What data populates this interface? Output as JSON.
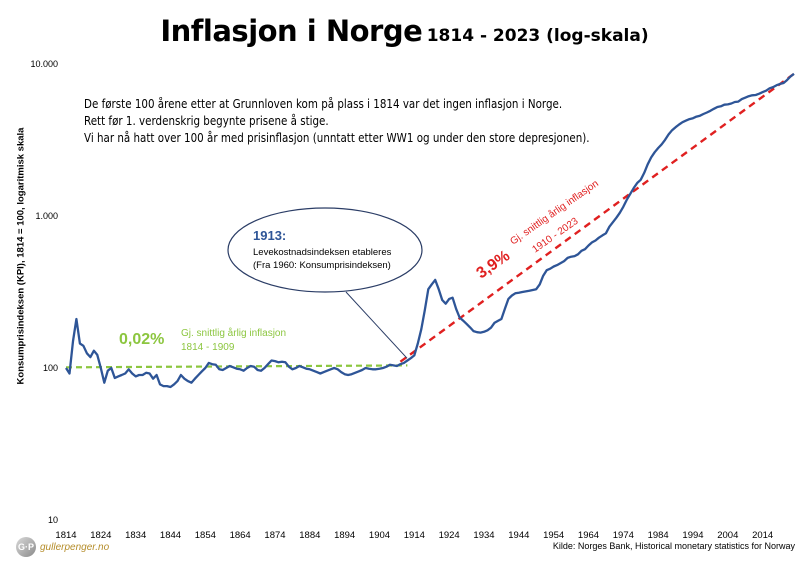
{
  "title": {
    "main": "Inflasjon i Norge",
    "sub": "1814 - 2023 (log-skala)"
  },
  "note_lines": [
    "De første 100 årene etter at Grunnloven kom på plass i 1814 var det ingen inflasjon i Norge.",
    "Rett før 1. verdenskrig begynte prisene å stige.",
    "Vi har nå hatt over 100 år med prisinflasjon (unntatt etter WW1 og under den store depresjonen)."
  ],
  "callout": {
    "year": "1913:",
    "line1": "Levekostnadsindeksen etableres",
    "line2": "(Fra 1960: Konsumprisindeksen)"
  },
  "annotation_early": {
    "rate": "0,02%",
    "line1": "Gj. snittlig årlig inflasjon",
    "line2": "1814 - 1909"
  },
  "annotation_late": {
    "rate": "3,9%",
    "line1": "Gj. snittlig årlig inflasjon",
    "line2": "1910 - 2023"
  },
  "source": "Kilde: Norges Bank, Historical monetary statistics for Norway",
  "logo": {
    "mark": "G·P",
    "site": "gullerpenger.no"
  },
  "colors": {
    "series": "#2e5597",
    "early_trend": "#8cc63f",
    "late_trend": "#e02020",
    "callout_text": "#2e5597"
  },
  "chart_data": {
    "type": "line",
    "title": "Inflasjon i Norge",
    "subtitle": "1814 - 2023 (log-skala)",
    "xlabel": "",
    "ylabel": "Konsumprisindeksen (KPI), 1814 = 100, logaritmisk skala",
    "xlim": [
      1814,
      2023
    ],
    "ylim": [
      10,
      10000
    ],
    "y_scale": "log",
    "yticks": [
      10,
      100,
      1000,
      10000
    ],
    "ytick_labels": [
      "10",
      "100",
      "1.000",
      "10.000"
    ],
    "xticks": [
      1814,
      1824,
      1834,
      1844,
      1854,
      1864,
      1874,
      1884,
      1894,
      1904,
      1914,
      1924,
      1934,
      1944,
      1954,
      1964,
      1974,
      1984,
      1994,
      2004,
      2014
    ],
    "grid": false,
    "series": [
      {
        "name": "",
        "points": [
          [
            1814,
            100
          ],
          [
            1815,
            92
          ],
          [
            1816,
            150
          ],
          [
            1817,
            210
          ],
          [
            1818,
            145
          ],
          [
            1819,
            140
          ],
          [
            1820,
            125
          ],
          [
            1821,
            118
          ],
          [
            1822,
            130
          ],
          [
            1823,
            122
          ],
          [
            1824,
            100
          ],
          [
            1825,
            80
          ],
          [
            1826,
            96
          ],
          [
            1827,
            100
          ],
          [
            1828,
            86
          ],
          [
            1829,
            88
          ],
          [
            1830,
            90
          ],
          [
            1831,
            92
          ],
          [
            1832,
            98
          ],
          [
            1833,
            92
          ],
          [
            1834,
            88
          ],
          [
            1835,
            90
          ],
          [
            1836,
            90
          ],
          [
            1837,
            93
          ],
          [
            1838,
            92
          ],
          [
            1839,
            85
          ],
          [
            1840,
            90
          ],
          [
            1841,
            78
          ],
          [
            1842,
            76
          ],
          [
            1843,
            76
          ],
          [
            1844,
            75
          ],
          [
            1845,
            78
          ],
          [
            1846,
            82
          ],
          [
            1847,
            90
          ],
          [
            1848,
            85
          ],
          [
            1849,
            82
          ],
          [
            1850,
            80
          ],
          [
            1851,
            85
          ],
          [
            1852,
            90
          ],
          [
            1853,
            95
          ],
          [
            1854,
            100
          ],
          [
            1855,
            108
          ],
          [
            1856,
            106
          ],
          [
            1857,
            105
          ],
          [
            1858,
            98
          ],
          [
            1859,
            97
          ],
          [
            1860,
            100
          ],
          [
            1861,
            103
          ],
          [
            1862,
            101
          ],
          [
            1863,
            99
          ],
          [
            1864,
            98
          ],
          [
            1865,
            96
          ],
          [
            1866,
            100
          ],
          [
            1867,
            103
          ],
          [
            1868,
            102
          ],
          [
            1869,
            97
          ],
          [
            1870,
            96
          ],
          [
            1871,
            100
          ],
          [
            1872,
            106
          ],
          [
            1873,
            112
          ],
          [
            1874,
            111
          ],
          [
            1875,
            109
          ],
          [
            1876,
            110
          ],
          [
            1877,
            109
          ],
          [
            1878,
            102
          ],
          [
            1879,
            98
          ],
          [
            1880,
            100
          ],
          [
            1881,
            103
          ],
          [
            1882,
            101
          ],
          [
            1883,
            99
          ],
          [
            1884,
            98
          ],
          [
            1885,
            96
          ],
          [
            1886,
            94
          ],
          [
            1887,
            92
          ],
          [
            1888,
            94
          ],
          [
            1889,
            96
          ],
          [
            1890,
            98
          ],
          [
            1891,
            100
          ],
          [
            1892,
            98
          ],
          [
            1893,
            94
          ],
          [
            1894,
            91
          ],
          [
            1895,
            90
          ],
          [
            1896,
            91
          ],
          [
            1897,
            93
          ],
          [
            1898,
            95
          ],
          [
            1899,
            97
          ],
          [
            1900,
            100
          ],
          [
            1901,
            99
          ],
          [
            1902,
            98
          ],
          [
            1903,
            98
          ],
          [
            1904,
            99
          ],
          [
            1905,
            100
          ],
          [
            1906,
            102
          ],
          [
            1907,
            105
          ],
          [
            1908,
            104
          ],
          [
            1909,
            103
          ],
          [
            1910,
            106
          ],
          [
            1911,
            108
          ],
          [
            1912,
            112
          ],
          [
            1913,
            116
          ],
          [
            1914,
            121
          ],
          [
            1915,
            145
          ],
          [
            1916,
            180
          ],
          [
            1917,
            240
          ],
          [
            1918,
            330
          ],
          [
            1919,
            355
          ],
          [
            1920,
            380
          ],
          [
            1921,
            330
          ],
          [
            1922,
            280
          ],
          [
            1923,
            265
          ],
          [
            1924,
            285
          ],
          [
            1925,
            290
          ],
          [
            1926,
            245
          ],
          [
            1927,
            215
          ],
          [
            1928,
            205
          ],
          [
            1929,
            195
          ],
          [
            1930,
            185
          ],
          [
            1931,
            175
          ],
          [
            1932,
            172
          ],
          [
            1933,
            171
          ],
          [
            1934,
            173
          ],
          [
            1935,
            177
          ],
          [
            1936,
            184
          ],
          [
            1937,
            198
          ],
          [
            1938,
            204
          ],
          [
            1939,
            210
          ],
          [
            1940,
            245
          ],
          [
            1941,
            285
          ],
          [
            1942,
            300
          ],
          [
            1943,
            310
          ],
          [
            1944,
            313
          ],
          [
            1945,
            316
          ],
          [
            1946,
            319
          ],
          [
            1947,
            322
          ],
          [
            1948,
            326
          ],
          [
            1949,
            330
          ],
          [
            1950,
            355
          ],
          [
            1951,
            405
          ],
          [
            1952,
            440
          ],
          [
            1953,
            450
          ],
          [
            1954,
            465
          ],
          [
            1955,
            475
          ],
          [
            1956,
            490
          ],
          [
            1957,
            505
          ],
          [
            1958,
            530
          ],
          [
            1959,
            540
          ],
          [
            1960,
            545
          ],
          [
            1961,
            560
          ],
          [
            1962,
            590
          ],
          [
            1963,
            605
          ],
          [
            1964,
            640
          ],
          [
            1965,
            670
          ],
          [
            1966,
            690
          ],
          [
            1967,
            720
          ],
          [
            1968,
            745
          ],
          [
            1969,
            770
          ],
          [
            1970,
            850
          ],
          [
            1971,
            910
          ],
          [
            1972,
            975
          ],
          [
            1973,
            1050
          ],
          [
            1974,
            1150
          ],
          [
            1975,
            1280
          ],
          [
            1976,
            1400
          ],
          [
            1977,
            1530
          ],
          [
            1978,
            1650
          ],
          [
            1979,
            1730
          ],
          [
            1980,
            1920
          ],
          [
            1981,
            2190
          ],
          [
            1982,
            2430
          ],
          [
            1983,
            2630
          ],
          [
            1984,
            2800
          ],
          [
            1985,
            2960
          ],
          [
            1986,
            3170
          ],
          [
            1987,
            3440
          ],
          [
            1988,
            3670
          ],
          [
            1989,
            3840
          ],
          [
            1990,
            4000
          ],
          [
            1991,
            4140
          ],
          [
            1992,
            4240
          ],
          [
            1993,
            4340
          ],
          [
            1994,
            4400
          ],
          [
            1995,
            4510
          ],
          [
            1996,
            4570
          ],
          [
            1997,
            4690
          ],
          [
            1998,
            4800
          ],
          [
            1999,
            4920
          ],
          [
            2000,
            5070
          ],
          [
            2001,
            5210
          ],
          [
            2002,
            5270
          ],
          [
            2003,
            5400
          ],
          [
            2004,
            5420
          ],
          [
            2005,
            5500
          ],
          [
            2006,
            5620
          ],
          [
            2007,
            5660
          ],
          [
            2008,
            5880
          ],
          [
            2009,
            6000
          ],
          [
            2010,
            6140
          ],
          [
            2011,
            6220
          ],
          [
            2012,
            6250
          ],
          [
            2013,
            6380
          ],
          [
            2014,
            6530
          ],
          [
            2015,
            6670
          ],
          [
            2016,
            6920
          ],
          [
            2017,
            7050
          ],
          [
            2018,
            7250
          ],
          [
            2019,
            7400
          ],
          [
            2020,
            7500
          ],
          [
            2021,
            7830
          ],
          [
            2022,
            8280
          ],
          [
            2023,
            8620
          ]
        ]
      }
    ],
    "trend_lines": [
      {
        "label": "0,02%",
        "from": [
          1814,
          101
        ],
        "to": [
          1912,
          104
        ]
      },
      {
        "label": "3,9%",
        "from": [
          1910,
          110
        ],
        "to": [
          2023,
          8620
        ]
      }
    ]
  }
}
